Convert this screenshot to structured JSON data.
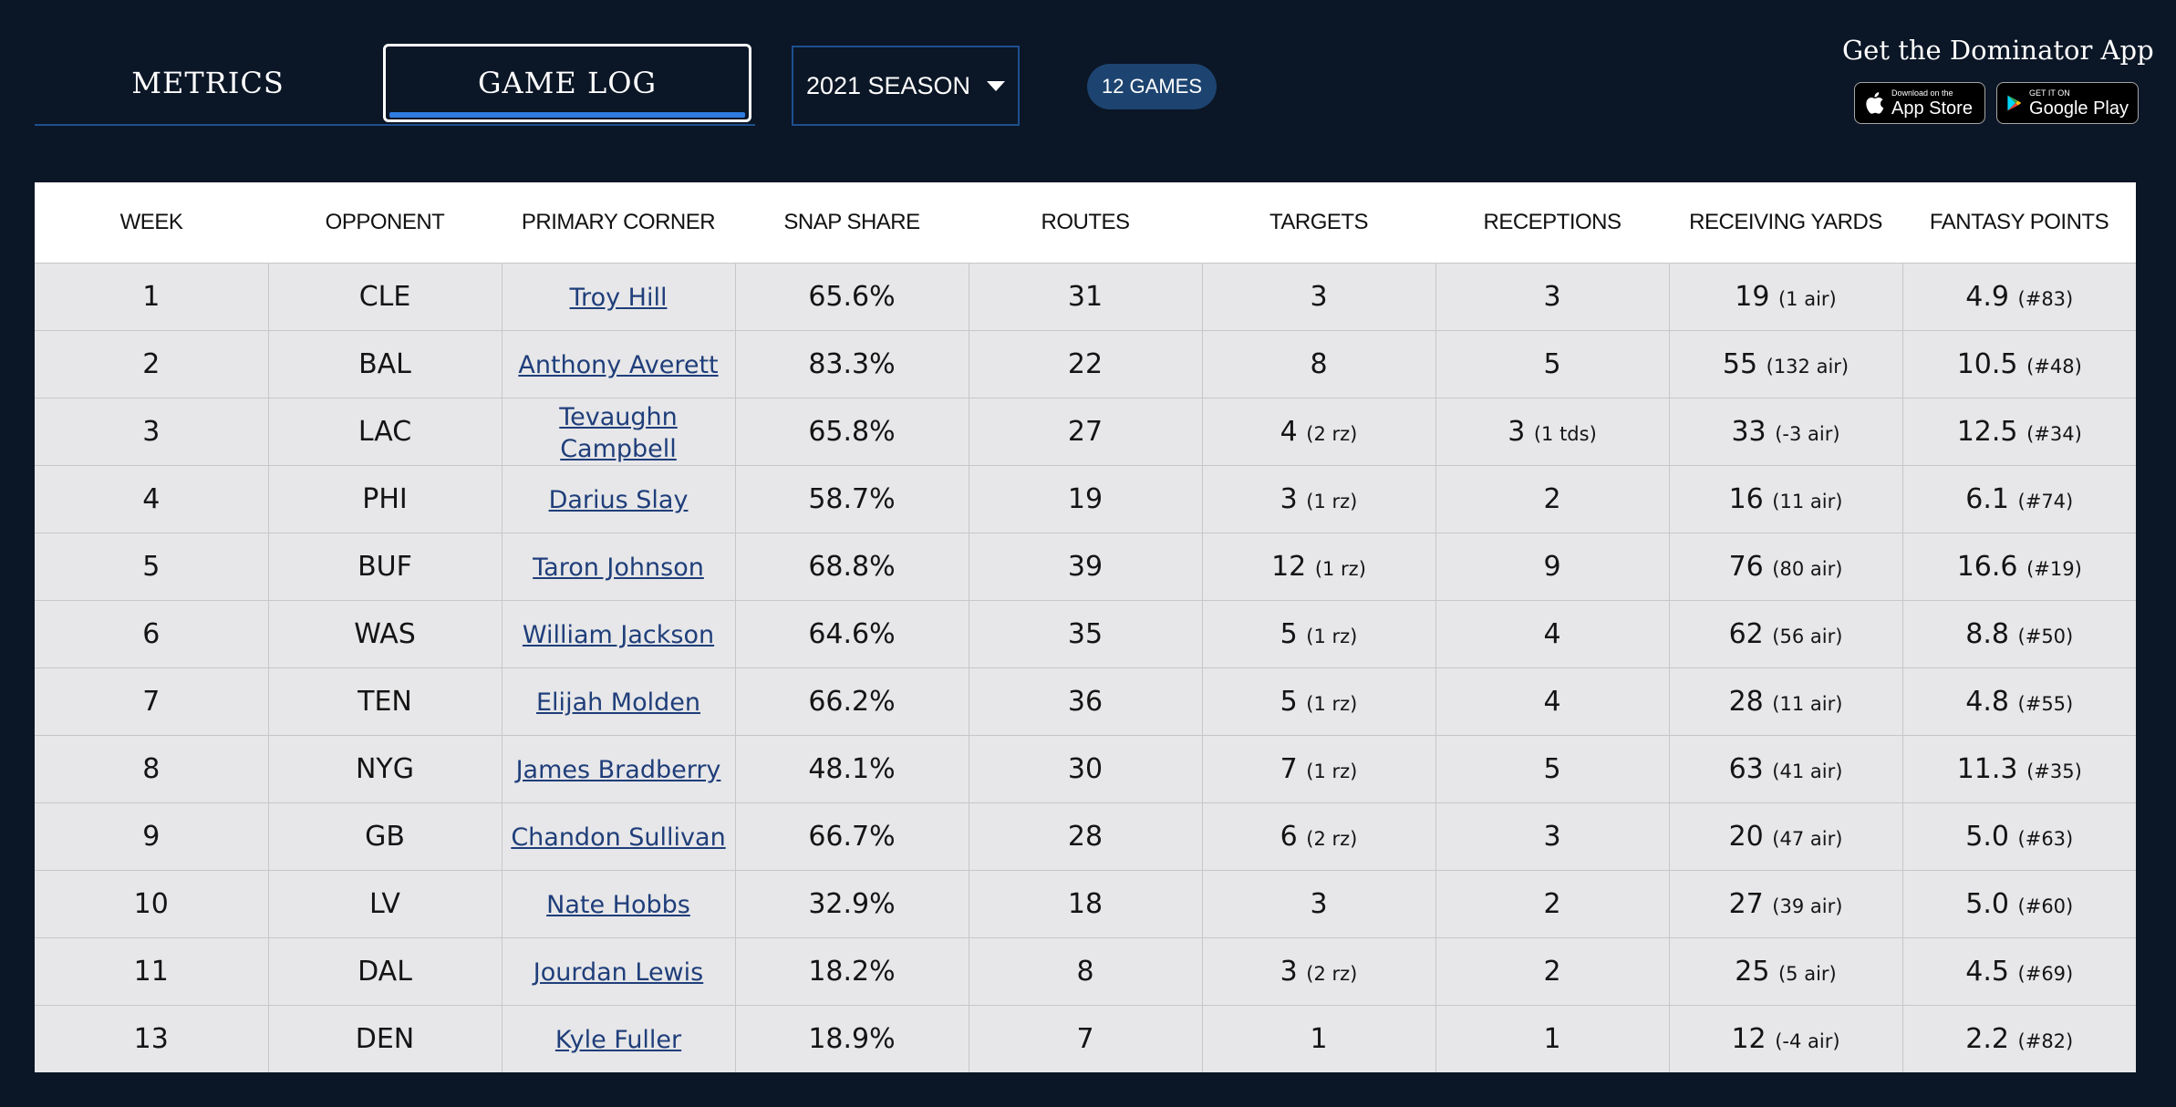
{
  "tabs": {
    "metrics": "METRICS",
    "game_log": "GAME LOG"
  },
  "season": {
    "selected": "2021 SEASON"
  },
  "games_badge": "12 GAMES",
  "app_promo": {
    "title": "Get the Dominator App",
    "app_store_small": "Download on the",
    "app_store_big": "App Store",
    "google_small": "GET IT ON",
    "google_big": "Google Play"
  },
  "table": {
    "headers": [
      "WEEK",
      "OPPONENT",
      "PRIMARY CORNER",
      "SNAP SHARE",
      "ROUTES",
      "TARGETS",
      "RECEPTIONS",
      "RECEIVING YARDS",
      "FANTASY POINTS"
    ],
    "rows": [
      {
        "week": "1",
        "opp": "CLE",
        "corner": "Troy Hill",
        "snap": "65.6%",
        "routes": "31",
        "targets": "3",
        "targets_note": "",
        "rec": "3",
        "rec_note": "",
        "yards": "19",
        "yards_note": "(1 air)",
        "fp": "4.9",
        "fp_note": "(#83)"
      },
      {
        "week": "2",
        "opp": "BAL",
        "corner": "Anthony Averett",
        "snap": "83.3%",
        "routes": "22",
        "targets": "8",
        "targets_note": "",
        "rec": "5",
        "rec_note": "",
        "yards": "55",
        "yards_note": "(132 air)",
        "fp": "10.5",
        "fp_note": "(#48)"
      },
      {
        "week": "3",
        "opp": "LAC",
        "corner": "Tevaughn Campbell",
        "snap": "65.8%",
        "routes": "27",
        "targets": "4",
        "targets_note": "(2 rz)",
        "rec": "3",
        "rec_note": "(1 tds)",
        "yards": "33",
        "yards_note": "(-3 air)",
        "fp": "12.5",
        "fp_note": "(#34)"
      },
      {
        "week": "4",
        "opp": "PHI",
        "corner": "Darius Slay",
        "snap": "58.7%",
        "routes": "19",
        "targets": "3",
        "targets_note": "(1 rz)",
        "rec": "2",
        "rec_note": "",
        "yards": "16",
        "yards_note": "(11 air)",
        "fp": "6.1",
        "fp_note": "(#74)"
      },
      {
        "week": "5",
        "opp": "BUF",
        "corner": "Taron Johnson",
        "snap": "68.8%",
        "routes": "39",
        "targets": "12",
        "targets_note": "(1 rz)",
        "rec": "9",
        "rec_note": "",
        "yards": "76",
        "yards_note": "(80 air)",
        "fp": "16.6",
        "fp_note": "(#19)"
      },
      {
        "week": "6",
        "opp": "WAS",
        "corner": "William Jackson",
        "snap": "64.6%",
        "routes": "35",
        "targets": "5",
        "targets_note": "(1 rz)",
        "rec": "4",
        "rec_note": "",
        "yards": "62",
        "yards_note": "(56 air)",
        "fp": "8.8",
        "fp_note": "(#50)"
      },
      {
        "week": "7",
        "opp": "TEN",
        "corner": "Elijah Molden",
        "snap": "66.2%",
        "routes": "36",
        "targets": "5",
        "targets_note": "(1 rz)",
        "rec": "4",
        "rec_note": "",
        "yards": "28",
        "yards_note": "(11 air)",
        "fp": "4.8",
        "fp_note": "(#55)"
      },
      {
        "week": "8",
        "opp": "NYG",
        "corner": "James Bradberry",
        "snap": "48.1%",
        "routes": "30",
        "targets": "7",
        "targets_note": "(1 rz)",
        "rec": "5",
        "rec_note": "",
        "yards": "63",
        "yards_note": "(41 air)",
        "fp": "11.3",
        "fp_note": "(#35)"
      },
      {
        "week": "9",
        "opp": "GB",
        "corner": "Chandon Sullivan",
        "snap": "66.7%",
        "routes": "28",
        "targets": "6",
        "targets_note": "(2 rz)",
        "rec": "3",
        "rec_note": "",
        "yards": "20",
        "yards_note": "(47 air)",
        "fp": "5.0",
        "fp_note": "(#63)"
      },
      {
        "week": "10",
        "opp": "LV",
        "corner": "Nate Hobbs",
        "snap": "32.9%",
        "routes": "18",
        "targets": "3",
        "targets_note": "",
        "rec": "2",
        "rec_note": "",
        "yards": "27",
        "yards_note": "(39 air)",
        "fp": "5.0",
        "fp_note": "(#60)"
      },
      {
        "week": "11",
        "opp": "DAL",
        "corner": "Jourdan Lewis",
        "snap": "18.2%",
        "routes": "8",
        "targets": "3",
        "targets_note": "(2 rz)",
        "rec": "2",
        "rec_note": "",
        "yards": "25",
        "yards_note": "(5 air)",
        "fp": "4.5",
        "fp_note": "(#69)"
      },
      {
        "week": "13",
        "opp": "DEN",
        "corner": "Kyle Fuller",
        "snap": "18.9%",
        "routes": "7",
        "targets": "1",
        "targets_note": "",
        "rec": "1",
        "rec_note": "",
        "yards": "12",
        "yards_note": "(-4 air)",
        "fp": "2.2",
        "fp_note": "(#82)"
      }
    ]
  }
}
